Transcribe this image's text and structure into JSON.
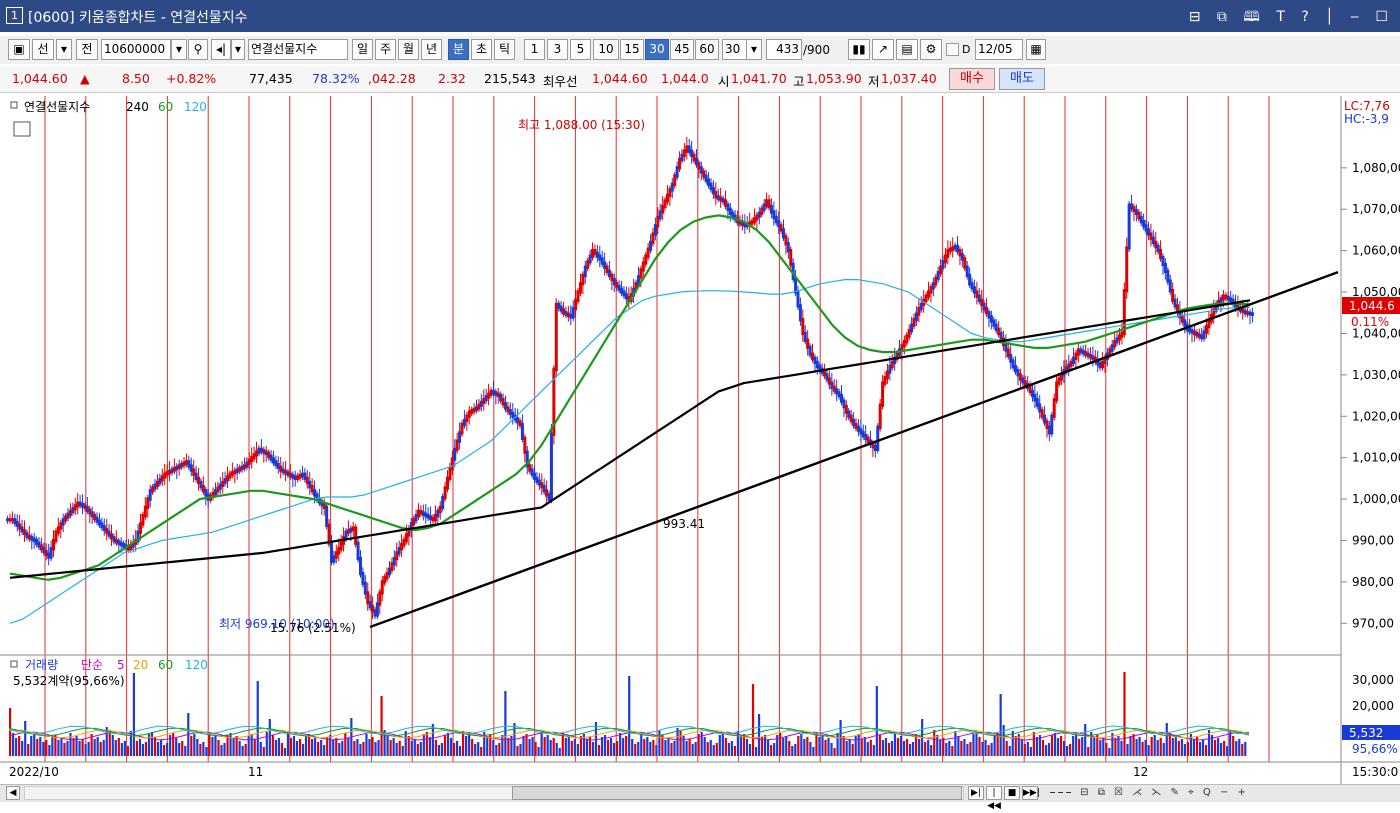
{
  "window": {
    "icon_number": "1",
    "title": "[0600] 키움종합차트 - 연결선물지수",
    "buttons": "⊟ ⧉ 🕮 T ? │ ‒ ☐"
  },
  "toolbar": {
    "sun": "선",
    "jeon": "전",
    "code": "10600000",
    "name": "연결선물지수",
    "period_buttons": [
      "일",
      "주",
      "월",
      "년",
      "분",
      "초",
      "틱"
    ],
    "selected_period": "분",
    "interval_buttons": [
      "1",
      "3",
      "5",
      "10",
      "15",
      "30",
      "45",
      "60"
    ],
    "selected_interval": "30",
    "interval_value": "30",
    "count": "433",
    "count_max": "/900",
    "d_label": "D",
    "date": "12/05"
  },
  "quote": {
    "price": "1,044.60",
    "arrow": "▲",
    "change": "8.50",
    "change_pct": "+0.82%",
    "volume": "77,435",
    "vol_pct": "78.32%",
    "val2": ",042.28",
    "val3": "2.32",
    "val4": "215,543",
    "best_label": "최우선",
    "best1": "1,044.60",
    "best2": "1,044.0",
    "open_label": "시",
    "open": "1,041.70",
    "high_label": "고",
    "high": "1,053.90",
    "low_label": "저",
    "low": "1,037.40",
    "buy_button": "매수",
    "sell_button": "매도"
  },
  "chart_data": {
    "type": "line",
    "name": "연결선물지수",
    "ma_labels": [
      "240",
      "60",
      "120"
    ],
    "ma_colors": [
      "#000000",
      "#1a9a1a",
      "#1fb4e0"
    ],
    "candle_up_color": "#e00000",
    "candle_down_color": "#1a3ad8",
    "y_ticks": [
      970,
      980,
      990,
      1000,
      1010,
      1020,
      1030,
      1040,
      1050,
      1060,
      1070,
      1080
    ],
    "y_tick_labels": [
      "970,00",
      "980,00",
      "990,00",
      "1,000,00",
      "1,010,00",
      "1,020,00",
      "1,030,00",
      "1,040,00",
      "1,050,00",
      "1,060,00",
      "1,070,00",
      "1,080,00"
    ],
    "ylim": [
      965,
      1093
    ],
    "x_labels": [
      "2022/10",
      "11",
      "12"
    ],
    "x_time_label": "15:30:0",
    "lc_label": "LC:7,76",
    "hc_label": "HC:-3,9",
    "current_label": "1,044.6",
    "current_pct": "0.11%",
    "high_annotation": "최고 1,088.00 (15:30)",
    "low_annotation": "최저 969.10 (10:00)",
    "low_annotation2": "15.76 (2.51%)",
    "trendline_label": "993.41",
    "close": [
      995,
      993,
      991,
      990,
      988,
      986,
      992,
      995,
      997,
      999,
      998,
      996,
      994,
      992,
      990,
      989,
      988,
      990,
      996,
      1002,
      1004,
      1006,
      1007,
      1008,
      1009,
      1006,
      1003,
      1000,
      1002,
      1004,
      1006,
      1007,
      1008,
      1010,
      1012,
      1011,
      1009,
      1007,
      1006,
      1005,
      1006,
      1003,
      1000,
      998,
      985,
      988,
      992,
      993,
      982,
      975,
      972,
      980,
      983,
      987,
      990,
      994,
      997,
      996,
      995,
      998,
      1005,
      1012,
      1018,
      1021,
      1022,
      1024,
      1026,
      1025,
      1022,
      1020,
      1018,
      1008,
      1005,
      1003,
      1000,
      1047,
      1045,
      1044,
      1050,
      1056,
      1060,
      1058,
      1055,
      1052,
      1050,
      1048,
      1052,
      1057,
      1062,
      1068,
      1072,
      1076,
      1082,
      1085,
      1082,
      1079,
      1076,
      1073,
      1072,
      1069,
      1067,
      1066,
      1067,
      1069,
      1072,
      1068,
      1065,
      1060,
      1050,
      1040,
      1035,
      1032,
      1030,
      1027,
      1025,
      1021,
      1018,
      1016,
      1014,
      1012,
      1028,
      1032,
      1035,
      1038,
      1042,
      1046,
      1049,
      1052,
      1056,
      1060,
      1061,
      1058,
      1052,
      1049,
      1046,
      1043,
      1040,
      1036,
      1032,
      1029,
      1027,
      1024,
      1020,
      1016,
      1028,
      1031,
      1033,
      1036,
      1035,
      1034,
      1032,
      1035,
      1038,
      1040,
      1071,
      1069,
      1066,
      1063,
      1060,
      1055,
      1048,
      1044,
      1041,
      1040,
      1039,
      1043,
      1047,
      1049,
      1048,
      1046,
      1045,
      1044.6
    ],
    "ma240": [
      981,
      981.3,
      981.6,
      981.9,
      982.2,
      982.5,
      982.8,
      983.1,
      983.4,
      983.7,
      984,
      984.3,
      984.6,
      984.9,
      985.2,
      985.5,
      985.8,
      986.1,
      986.4,
      986.7,
      987,
      987.5,
      988,
      988.5,
      989,
      989.5,
      990,
      990.5,
      991,
      991.5,
      992,
      992.5,
      993,
      993.5,
      994,
      994.5,
      995,
      995.5,
      996,
      996.5,
      997,
      997.5,
      998,
      1000,
      1002,
      1004,
      1006,
      1008,
      1010,
      1012,
      1014,
      1016,
      1018,
      1020,
      1022,
      1024,
      1026,
      1027,
      1028,
      1028.5,
      1029,
      1029.5,
      1030,
      1030.5,
      1031,
      1031.5,
      1032,
      1032.5,
      1033,
      1033.5,
      1034,
      1034.5,
      1035,
      1035.5,
      1036,
      1036.5,
      1037,
      1037.5,
      1038,
      1038.5,
      1039,
      1039.5,
      1040,
      1040.5,
      1041,
      1041.5,
      1042,
      1042.5,
      1043,
      1043.5,
      1044,
      1044.5,
      1045,
      1045.5,
      1046,
      1046.5,
      1047,
      1047.5,
      1048
    ],
    "ma60": [
      982,
      981.5,
      981,
      980.5,
      981,
      982,
      983,
      984,
      986,
      988,
      990,
      992,
      994,
      996,
      998,
      1000,
      1000.5,
      1001,
      1001.5,
      1002,
      1002,
      1001.5,
      1001,
      1000.5,
      1000,
      999,
      998,
      997,
      996,
      995,
      994,
      993,
      992.5,
      993,
      994,
      996,
      998,
      1000,
      1002,
      1004,
      1006,
      1009,
      1013,
      1018,
      1023,
      1028,
      1033,
      1038,
      1043,
      1048,
      1053,
      1058,
      1062,
      1065,
      1067,
      1068,
      1068.5,
      1068,
      1067,
      1065,
      1062,
      1058,
      1054,
      1050,
      1046,
      1042,
      1039,
      1037,
      1036,
      1035.5,
      1035.5,
      1036,
      1036.5,
      1037,
      1037.5,
      1038,
      1038.5,
      1038.5,
      1038,
      1037.5,
      1037,
      1036.5,
      1036.5,
      1037,
      1037.5,
      1038,
      1039,
      1040,
      1041,
      1042,
      1043,
      1044,
      1045,
      1046,
      1046.5,
      1047,
      1047.2,
      1047.2,
      1047
    ],
    "ma120": [
      970,
      971,
      973,
      975,
      977,
      979,
      981,
      983,
      985,
      987,
      988,
      989,
      990,
      990.5,
      991,
      991.5,
      992,
      993,
      994,
      995,
      996,
      997,
      998,
      999,
      1000,
      1000.5,
      1000.5,
      1000.5,
      1001,
      1002,
      1003,
      1004,
      1005,
      1006,
      1007,
      1008,
      1010,
      1012,
      1014,
      1017,
      1020,
      1023,
      1026,
      1029,
      1032,
      1035,
      1038,
      1041,
      1044,
      1046,
      1048,
      1049,
      1049.5,
      1050,
      1050.2,
      1050.3,
      1050.3,
      1050.2,
      1050,
      1049.8,
      1049.5,
      1049.5,
      1050,
      1051,
      1052,
      1052.5,
      1053,
      1053,
      1052.5,
      1052,
      1051,
      1050,
      1048,
      1046,
      1044,
      1042,
      1040,
      1039,
      1038.5,
      1038,
      1038,
      1038.5,
      1039,
      1039.5,
      1040,
      1040.5,
      1041,
      1041.5,
      1042,
      1042.5,
      1043,
      1043.5,
      1044,
      1044.5,
      1045,
      1045.5,
      1046,
      1046.2,
      1046.3
    ],
    "trendline": {
      "x": [
        "start",
        "end"
      ],
      "y": [
        969.1,
        1050.0
      ]
    },
    "volume_panel": {
      "name": "거래량",
      "ma_label": "단순",
      "ma_periods": [
        "5",
        "20",
        "60",
        "120"
      ],
      "ma_colors": [
        "#cc00cc",
        "#e6a800",
        "#1a9a1a",
        "#1fb4e0"
      ],
      "info": "5,532계약(95,66%)",
      "y_tick_labels": [
        "30,000",
        "20,000"
      ],
      "current_label": "5,532",
      "current_pct": "95,66%"
    }
  },
  "bottom": {
    "ctrl_icons": [
      "◀",
      "▶|",
      "|◀◀",
      "■",
      "▶▶|"
    ]
  }
}
